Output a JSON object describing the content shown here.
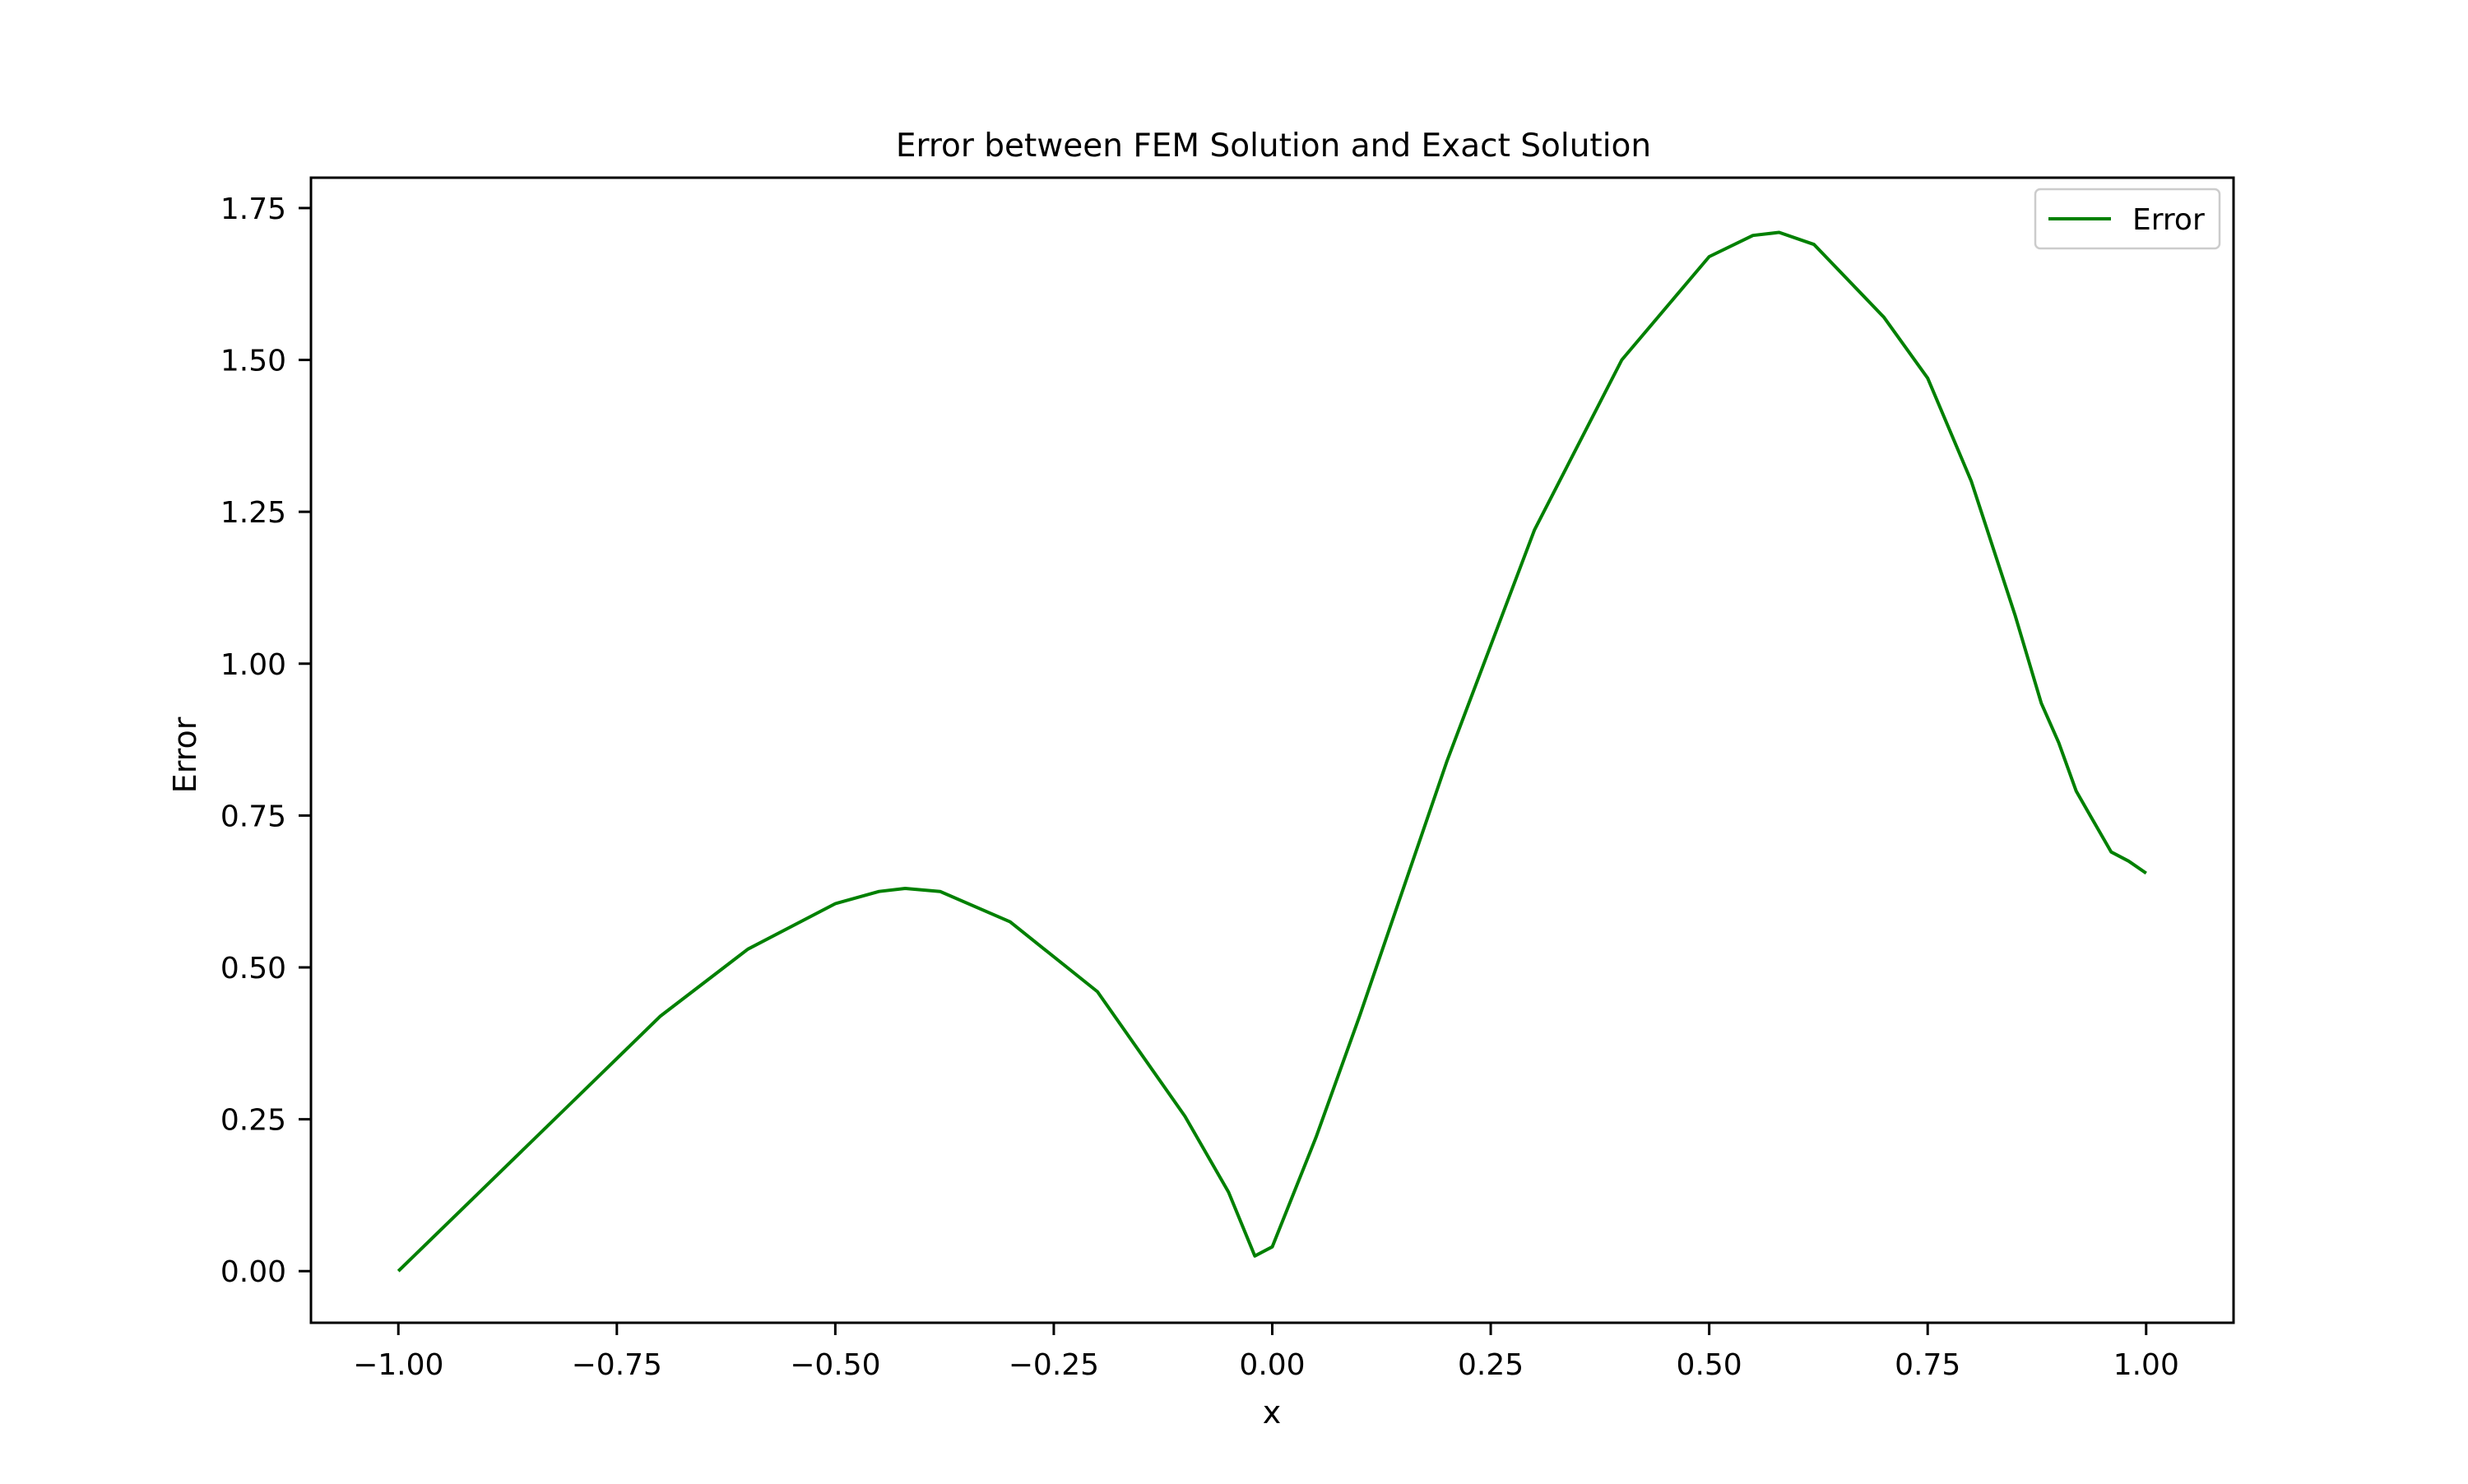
{
  "colors": {
    "series": "#008000",
    "axes": "#000000",
    "background": "#ffffff",
    "legend_border": "#cccccc"
  },
  "chart_data": {
    "type": "line",
    "title": "Error between FEM Solution and Exact Solution",
    "xlabel": "x",
    "ylabel": "Error",
    "xlim": [
      -1.1,
      1.1
    ],
    "ylim": [
      -0.085,
      1.8
    ],
    "xticks": [
      -1.0,
      -0.75,
      -0.5,
      -0.25,
      0.0,
      0.25,
      0.5,
      0.75,
      1.0
    ],
    "xtick_labels": [
      "−1.00",
      "−0.75",
      "−0.50",
      "−0.25",
      "0.00",
      "0.25",
      "0.50",
      "0.75",
      "1.00"
    ],
    "yticks": [
      0.0,
      0.25,
      0.5,
      0.75,
      1.0,
      1.25,
      1.5,
      1.75
    ],
    "ytick_labels": [
      "0.00",
      "0.25",
      "0.50",
      "0.75",
      "1.00",
      "1.25",
      "1.50",
      "1.75"
    ],
    "grid": false,
    "legend_position": "top-right",
    "series": [
      {
        "name": "Error",
        "color": "#008000",
        "x": [
          -1.0,
          -0.9,
          -0.8,
          -0.7,
          -0.6,
          -0.5,
          -0.45,
          -0.42,
          -0.38,
          -0.3,
          -0.2,
          -0.1,
          -0.05,
          -0.02,
          0.0,
          0.05,
          0.1,
          0.2,
          0.3,
          0.4,
          0.5,
          0.55,
          0.58,
          0.62,
          0.7,
          0.75,
          0.8,
          0.85,
          0.88,
          0.9,
          0.92,
          0.94,
          0.96,
          0.98,
          1.0
        ],
        "y": [
          0.0,
          0.14,
          0.28,
          0.42,
          0.53,
          0.605,
          0.625,
          0.63,
          0.625,
          0.575,
          0.46,
          0.255,
          0.13,
          0.025,
          0.04,
          0.22,
          0.42,
          0.84,
          1.22,
          1.5,
          1.67,
          1.705,
          1.71,
          1.69,
          1.57,
          1.47,
          1.3,
          1.08,
          0.935,
          0.87,
          0.79,
          0.74,
          0.69,
          0.675,
          0.655
        ]
      }
    ]
  }
}
